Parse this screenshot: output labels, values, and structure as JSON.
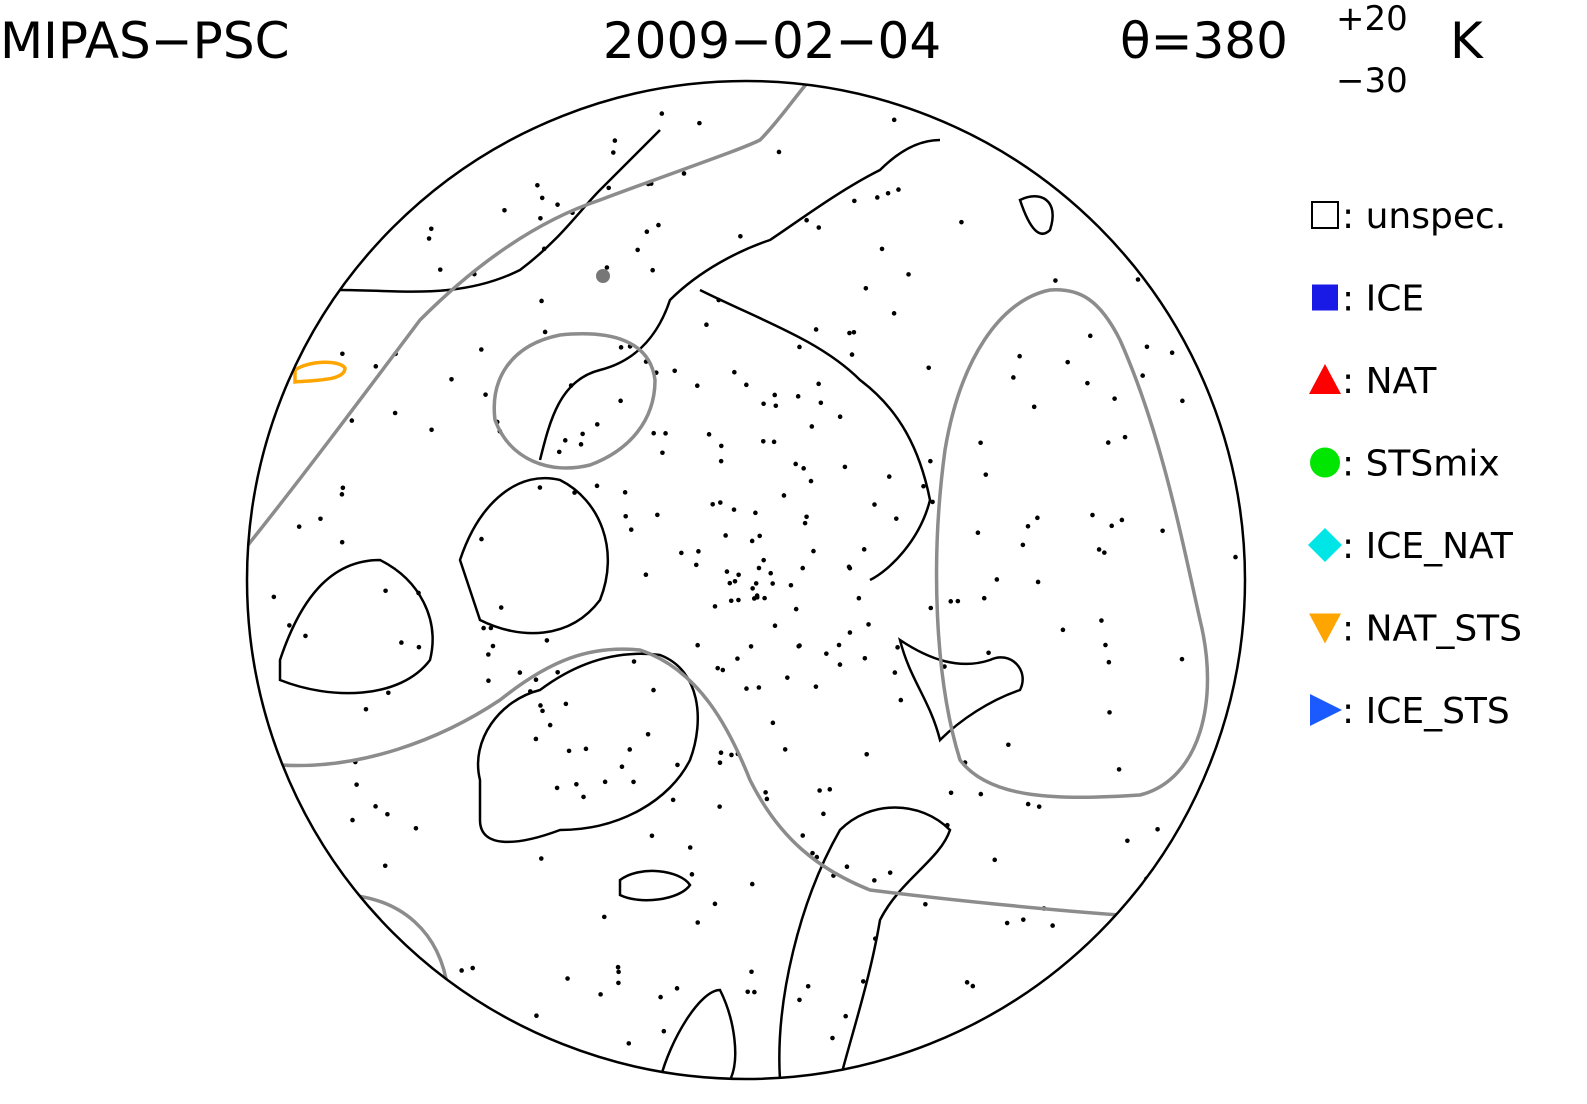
{
  "header": {
    "title": "MIPAS−PSC",
    "date": "2009−02−04",
    "theta": "θ=380",
    "theta_upper": "+20",
    "theta_lower": "−30",
    "unit": "K"
  },
  "legend": {
    "items": [
      {
        "label": ": unspec.",
        "symbol": "open-square",
        "color": "#000000"
      },
      {
        "label": ": ICE",
        "symbol": "square",
        "color": "#1a1ae6"
      },
      {
        "label": ": NAT",
        "symbol": "triangle-up",
        "color": "#ff0000"
      },
      {
        "label": ": STSmix",
        "symbol": "circle",
        "color": "#00e600"
      },
      {
        "label": ": ICE_NAT",
        "symbol": "diamond",
        "color": "#00e6e6"
      },
      {
        "label": ": NAT_STS",
        "symbol": "triangle-down",
        "color": "#ffa500"
      },
      {
        "label": ": ICE_STS",
        "symbol": "triangle-right",
        "color": "#1a5aff"
      }
    ]
  }
}
